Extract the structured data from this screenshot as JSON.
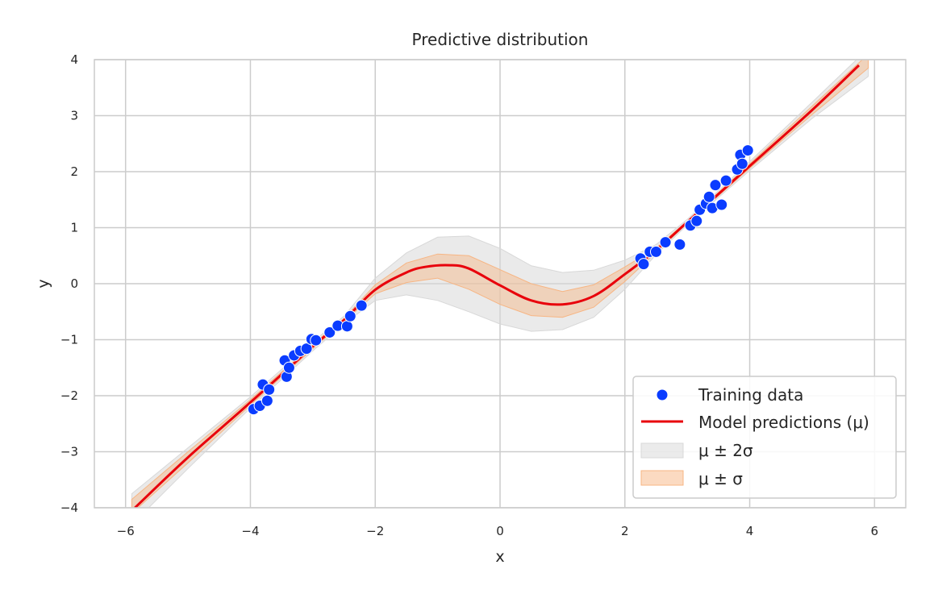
{
  "chart_data": {
    "type": "line",
    "title": "Predictive distribution",
    "xlabel": "x",
    "ylabel": "y",
    "xlim": [
      -6.5,
      6.5
    ],
    "ylim": [
      -4,
      4
    ],
    "xticks": [
      -6,
      -4,
      -2,
      0,
      2,
      4,
      6
    ],
    "yticks": [
      -4,
      -3,
      -2,
      -1,
      0,
      1,
      2,
      3,
      4
    ],
    "xtick_labels": [
      "−6",
      "−4",
      "−2",
      "0",
      "2",
      "4",
      "6"
    ],
    "ytick_labels": [
      "−4",
      "−3",
      "−2",
      "−1",
      "0",
      "1",
      "2",
      "3",
      "4"
    ],
    "grid": true,
    "legend_position": "lower-right",
    "colors": {
      "training": "#0a3cff",
      "prediction": "#e8000b",
      "band2": "#d8d8d8",
      "band1": "#f7b583",
      "grid": "#cccccc"
    },
    "series": [
      {
        "name": "Training data",
        "kind": "scatter",
        "points": [
          [
            -3.95,
            -2.24
          ],
          [
            -3.85,
            -2.18
          ],
          [
            -3.8,
            -1.8
          ],
          [
            -3.73,
            -2.09
          ],
          [
            -3.7,
            -1.89
          ],
          [
            -3.45,
            -1.37
          ],
          [
            -3.42,
            -1.66
          ],
          [
            -3.38,
            -1.5
          ],
          [
            -3.3,
            -1.28
          ],
          [
            -3.2,
            -1.2
          ],
          [
            -3.1,
            -1.16
          ],
          [
            -3.02,
            -0.99
          ],
          [
            -2.95,
            -1.01
          ],
          [
            -2.73,
            -0.87
          ],
          [
            -2.6,
            -0.75
          ],
          [
            -2.45,
            -0.76
          ],
          [
            -2.4,
            -0.58
          ],
          [
            -2.22,
            -0.39
          ],
          [
            2.25,
            0.45
          ],
          [
            2.3,
            0.35
          ],
          [
            2.4,
            0.57
          ],
          [
            2.5,
            0.57
          ],
          [
            2.65,
            0.74
          ],
          [
            2.88,
            0.7
          ],
          [
            3.05,
            1.04
          ],
          [
            3.15,
            1.12
          ],
          [
            3.2,
            1.32
          ],
          [
            3.3,
            1.43
          ],
          [
            3.35,
            1.55
          ],
          [
            3.4,
            1.35
          ],
          [
            3.45,
            1.76
          ],
          [
            3.55,
            1.41
          ],
          [
            3.62,
            1.84
          ],
          [
            3.8,
            2.04
          ],
          [
            3.85,
            2.3
          ],
          [
            3.88,
            2.14
          ],
          [
            3.97,
            2.38
          ]
        ]
      },
      {
        "name": "Model predictions (μ)",
        "kind": "line",
        "x": [
          -5.85,
          -5.0,
          -4.0,
          -3.0,
          -2.5,
          -2.0,
          -1.5,
          -1.2,
          -0.8,
          -0.5,
          0.0,
          0.5,
          1.0,
          1.5,
          2.0,
          2.5,
          3.0,
          3.5,
          4.0,
          5.0,
          5.75
        ],
        "y": [
          -4.0,
          -3.1,
          -2.12,
          -1.12,
          -0.65,
          -0.11,
          0.2,
          0.3,
          0.33,
          0.27,
          -0.03,
          -0.3,
          -0.37,
          -0.22,
          0.17,
          0.6,
          1.1,
          1.6,
          2.1,
          3.1,
          3.9
        ]
      },
      {
        "name": "μ ± 2σ",
        "kind": "band",
        "x": [
          -5.9,
          -5.0,
          -4.0,
          -3.0,
          -2.5,
          -2.0,
          -1.5,
          -1.0,
          -0.5,
          0.0,
          0.5,
          1.0,
          1.5,
          2.0,
          2.5,
          3.0,
          3.5,
          4.0,
          5.0,
          5.9
        ],
        "lower": [
          -4.3,
          -3.3,
          -2.22,
          -1.2,
          -0.72,
          -0.3,
          -0.2,
          -0.3,
          -0.5,
          -0.72,
          -0.85,
          -0.82,
          -0.6,
          -0.1,
          0.52,
          1.05,
          1.54,
          2.02,
          2.95,
          3.7
        ],
        "upper": [
          -3.75,
          -2.93,
          -2.02,
          -1.04,
          -0.58,
          0.1,
          0.55,
          0.83,
          0.85,
          0.63,
          0.32,
          0.2,
          0.24,
          0.42,
          0.7,
          1.15,
          1.66,
          2.18,
          3.24,
          4.2
        ]
      },
      {
        "name": "μ ± σ",
        "kind": "band",
        "x": [
          -5.9,
          -5.0,
          -4.0,
          -3.0,
          -2.5,
          -2.0,
          -1.5,
          -1.0,
          -0.5,
          0.0,
          0.5,
          1.0,
          1.5,
          2.0,
          2.5,
          3.0,
          3.5,
          4.0,
          5.0,
          5.9
        ],
        "lower": [
          -4.1,
          -3.2,
          -2.17,
          -1.16,
          -0.68,
          -0.18,
          0.02,
          0.1,
          -0.1,
          -0.37,
          -0.57,
          -0.6,
          -0.42,
          0.04,
          0.56,
          1.08,
          1.57,
          2.06,
          3.02,
          3.85
        ],
        "upper": [
          -3.85,
          -3.0,
          -2.07,
          -1.08,
          -0.62,
          -0.02,
          0.37,
          0.53,
          0.5,
          0.25,
          0.0,
          -0.14,
          -0.02,
          0.3,
          0.64,
          1.12,
          1.63,
          2.14,
          3.17,
          4.1
        ]
      }
    ]
  }
}
